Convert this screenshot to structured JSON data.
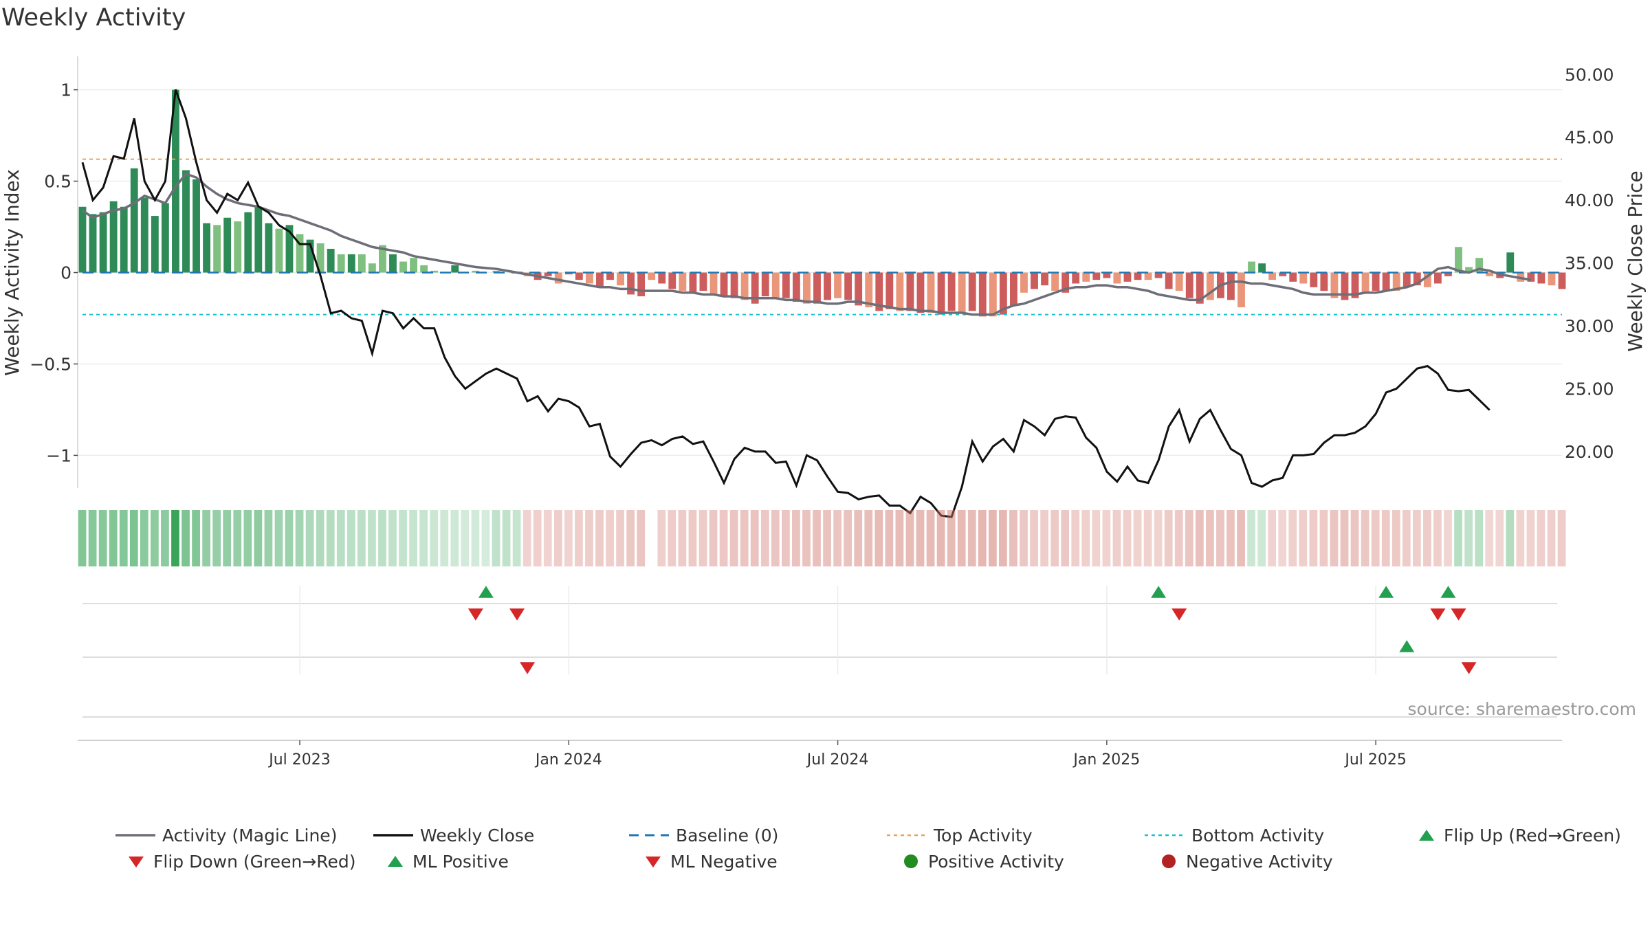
{
  "title": "Weekly Activity",
  "source_note": "source: sharemaestro.com",
  "colors": {
    "magic_line": "#6e6e78",
    "close": "#111111",
    "baseline": "#1f77b4",
    "top": "#e8a25a",
    "bottom": "#17c3cf",
    "pos_strong": "#2e8b57",
    "pos_weak": "#7fbf7f",
    "neg_strong": "#cd5c5c",
    "neg_weak": "#e9967a",
    "marker_up": "#22a050",
    "marker_down": "#d62728"
  },
  "chart_data": {
    "type": "bar",
    "ylabel": "Weekly Activity Index",
    "ylabel_right": "Weekly Close Price",
    "ylim": [
      -1.1,
      1.1
    ],
    "y_ticks": [
      1,
      0.5,
      0,
      -0.5,
      -1
    ],
    "y_tick_labels": [
      "1",
      "0.5",
      "0",
      "−0.5",
      "−1"
    ],
    "y2lim": [
      16,
      51
    ],
    "y2_ticks": [
      50,
      45,
      40,
      35,
      30,
      25,
      20
    ],
    "y2_tick_labels": [
      "50.00",
      "45.00",
      "40.00",
      "35.00",
      "30.00",
      "25.00",
      "20.00"
    ],
    "x_tick_labels": [
      "Jul 2023",
      "Jan 2024",
      "Jul 2024",
      "Jan 2025",
      "Jul 2025"
    ],
    "x_tick_weeks": [
      21,
      47,
      73,
      99,
      125
    ],
    "top_activity": 0.62,
    "bottom_activity": -0.23,
    "activity": [
      0.36,
      0.32,
      0.33,
      0.39,
      0.36,
      0.57,
      0.41,
      0.31,
      0.38,
      1.0,
      0.56,
      0.51,
      0.27,
      0.26,
      0.3,
      0.28,
      0.33,
      0.36,
      0.27,
      0.24,
      0.26,
      0.21,
      0.18,
      0.16,
      0.13,
      0.1,
      0.1,
      0.1,
      0.05,
      0.15,
      0.1,
      0.06,
      0.08,
      0.04,
      0.01,
      0.0,
      0.04,
      0.0,
      0.01,
      0.0,
      0.01,
      0.0,
      0.0,
      -0.02,
      -0.04,
      -0.02,
      -0.06,
      -0.01,
      -0.04,
      -0.06,
      -0.08,
      -0.04,
      -0.07,
      -0.12,
      -0.13,
      -0.04,
      -0.06,
      -0.09,
      -0.1,
      -0.11,
      -0.1,
      -0.12,
      -0.13,
      -0.14,
      -0.15,
      -0.17,
      -0.13,
      -0.14,
      -0.14,
      -0.16,
      -0.17,
      -0.17,
      -0.15,
      -0.14,
      -0.15,
      -0.18,
      -0.19,
      -0.21,
      -0.2,
      -0.21,
      -0.21,
      -0.22,
      -0.22,
      -0.23,
      -0.21,
      -0.22,
      -0.21,
      -0.24,
      -0.24,
      -0.23,
      -0.18,
      -0.11,
      -0.09,
      -0.07,
      -0.1,
      -0.11,
      -0.06,
      -0.05,
      -0.04,
      -0.03,
      -0.06,
      -0.05,
      -0.04,
      -0.04,
      -0.03,
      -0.09,
      -0.1,
      -0.14,
      -0.17,
      -0.15,
      -0.14,
      -0.15,
      -0.19,
      0.06,
      0.05,
      -0.04,
      -0.02,
      -0.05,
      -0.06,
      -0.08,
      -0.1,
      -0.14,
      -0.15,
      -0.14,
      -0.11,
      -0.1,
      -0.1,
      -0.1,
      -0.08,
      -0.07,
      -0.08,
      -0.06,
      -0.02,
      0.14,
      0.03,
      0.08,
      -0.02,
      -0.03,
      0.11,
      -0.05,
      -0.05,
      -0.06,
      -0.07,
      -0.09
    ],
    "magic_line": [
      0.34,
      0.3,
      0.32,
      0.34,
      0.35,
      0.38,
      0.42,
      0.4,
      0.38,
      0.47,
      0.54,
      0.52,
      0.47,
      0.43,
      0.4,
      0.38,
      0.37,
      0.36,
      0.34,
      0.32,
      0.31,
      0.29,
      0.27,
      0.25,
      0.23,
      0.2,
      0.18,
      0.16,
      0.14,
      0.13,
      0.12,
      0.11,
      0.09,
      0.08,
      0.07,
      0.06,
      0.05,
      0.04,
      0.03,
      0.025,
      0.02,
      0.01,
      0.0,
      -0.01,
      -0.02,
      -0.03,
      -0.04,
      -0.05,
      -0.06,
      -0.07,
      -0.08,
      -0.08,
      -0.09,
      -0.09,
      -0.1,
      -0.1,
      -0.1,
      -0.1,
      -0.11,
      -0.11,
      -0.12,
      -0.12,
      -0.13,
      -0.13,
      -0.14,
      -0.14,
      -0.14,
      -0.14,
      -0.15,
      -0.15,
      -0.16,
      -0.16,
      -0.17,
      -0.17,
      -0.16,
      -0.16,
      -0.17,
      -0.18,
      -0.19,
      -0.2,
      -0.2,
      -0.21,
      -0.21,
      -0.22,
      -0.22,
      -0.22,
      -0.23,
      -0.23,
      -0.23,
      -0.2,
      -0.18,
      -0.17,
      -0.15,
      -0.13,
      -0.11,
      -0.09,
      -0.08,
      -0.08,
      -0.07,
      -0.07,
      -0.08,
      -0.08,
      -0.09,
      -0.1,
      -0.12,
      -0.13,
      -0.14,
      -0.15,
      -0.15,
      -0.11,
      -0.07,
      -0.05,
      -0.05,
      -0.06,
      -0.06,
      -0.07,
      -0.08,
      -0.09,
      -0.11,
      -0.12,
      -0.12,
      -0.12,
      -0.12,
      -0.12,
      -0.11,
      -0.11,
      -0.1,
      -0.09,
      -0.08,
      -0.06,
      -0.02,
      0.02,
      0.03,
      0.01,
      0.0,
      0.02,
      0.01,
      -0.01,
      -0.02,
      -0.03,
      -0.04
    ],
    "close": [
      43,
      40,
      41,
      43.5,
      43.3,
      46.5,
      41.5,
      40,
      41.5,
      48.8,
      46.5,
      43,
      40,
      39,
      40.5,
      40,
      41.4,
      39.5,
      39,
      38,
      37.5,
      36.5,
      36.5,
      34,
      31,
      31.2,
      30.6,
      30.4,
      27.8,
      31.2,
      31,
      29.8,
      30.6,
      29.8,
      29.8,
      27.5,
      26,
      25,
      25.6,
      26.2,
      26.6,
      26.2,
      25.8,
      24,
      24.4,
      23.2,
      24.2,
      24,
      23.5,
      22,
      22.2,
      19.6,
      18.8,
      19.8,
      20.7,
      20.9,
      20.5,
      21,
      21.2,
      20.6,
      20.8,
      19.2,
      17.5,
      19.4,
      20.3,
      20,
      20,
      19.1,
      19.2,
      17.3,
      19.7,
      19.3,
      18,
      16.8,
      16.7,
      16.2,
      16.4,
      16.5,
      15.7,
      15.7,
      15.1,
      16.4,
      15.9,
      14.9,
      14.8,
      17.2,
      20.8,
      19.2,
      20.4,
      21,
      20,
      22.5,
      22,
      21.3,
      22.6,
      22.8,
      22.7,
      21.1,
      20.3,
      18.4,
      17.6,
      18.8,
      17.7,
      17.5,
      19.3,
      22,
      23.3,
      20.8,
      22.6,
      23.3,
      21.7,
      20.2,
      19.7,
      17.5,
      17.2,
      17.7,
      17.9,
      19.7,
      19.7,
      19.8,
      20.7,
      21.3,
      21.3,
      21.5,
      22,
      23,
      24.7,
      25,
      25.8,
      26.6,
      26.8,
      26.2,
      24.9,
      24.8,
      24.9,
      24.1,
      23.3
    ],
    "band": [
      0.6,
      0.58,
      0.58,
      0.6,
      0.59,
      0.63,
      0.56,
      0.54,
      0.55,
      0.95,
      0.62,
      0.6,
      0.52,
      0.5,
      0.52,
      0.5,
      0.52,
      0.54,
      0.49,
      0.46,
      0.48,
      0.44,
      0.4,
      0.38,
      0.36,
      0.34,
      0.33,
      0.32,
      0.3,
      0.33,
      0.3,
      0.29,
      0.28,
      0.27,
      0.25,
      0.24,
      0.24,
      0.22,
      0.22,
      0.2,
      0.3,
      0.3,
      0.28,
      0.3,
      0.32,
      0.3,
      0.34,
      0.3,
      0.33,
      0.34,
      0.36,
      0.33,
      0.35,
      0.38,
      0.4,
      0.0,
      0.33,
      0.35,
      0.36,
      0.37,
      0.36,
      0.38,
      0.39,
      0.4,
      0.4,
      0.42,
      0.38,
      0.4,
      0.4,
      0.42,
      0.42,
      0.43,
      0.41,
      0.4,
      0.41,
      0.44,
      0.45,
      0.47,
      0.46,
      0.47,
      0.47,
      0.48,
      0.48,
      0.49,
      0.47,
      0.48,
      0.47,
      0.5,
      0.5,
      0.49,
      0.44,
      0.38,
      0.36,
      0.34,
      0.37,
      0.38,
      0.33,
      0.32,
      0.31,
      0.3,
      0.33,
      0.32,
      0.31,
      0.31,
      0.3,
      0.36,
      0.37,
      0.4,
      0.43,
      0.41,
      0.4,
      0.41,
      0.45,
      0.25,
      0.24,
      0.3,
      0.29,
      0.32,
      0.33,
      0.35,
      0.37,
      0.4,
      0.41,
      0.4,
      0.38,
      0.37,
      0.37,
      0.37,
      0.35,
      0.34,
      0.35,
      0.33,
      0.29,
      0.35,
      0.3,
      0.33,
      0.28,
      0.29,
      0.36,
      0.31,
      0.31,
      0.32,
      0.33,
      0.35
    ],
    "flip_up_weeks": [
      39,
      104,
      126,
      132
    ],
    "flip_down_weeks": [
      38,
      42,
      106,
      131,
      133
    ],
    "ml_positive_weeks": [
      128
    ],
    "ml_negative_weeks": [
      43,
      134
    ],
    "positive_activity_weeks": [],
    "negative_activity_weeks": [],
    "legend": [
      "Activity (Magic Line)",
      "Weekly Close",
      "Baseline (0)",
      "Top Activity",
      "Bottom Activity",
      "Flip Up (Red→Green)",
      "Flip Down (Green→Red)",
      "ML Positive",
      "ML Negative",
      "Positive Activity",
      "Negative Activity"
    ],
    "grid": true,
    "legend_position": "bottom"
  }
}
